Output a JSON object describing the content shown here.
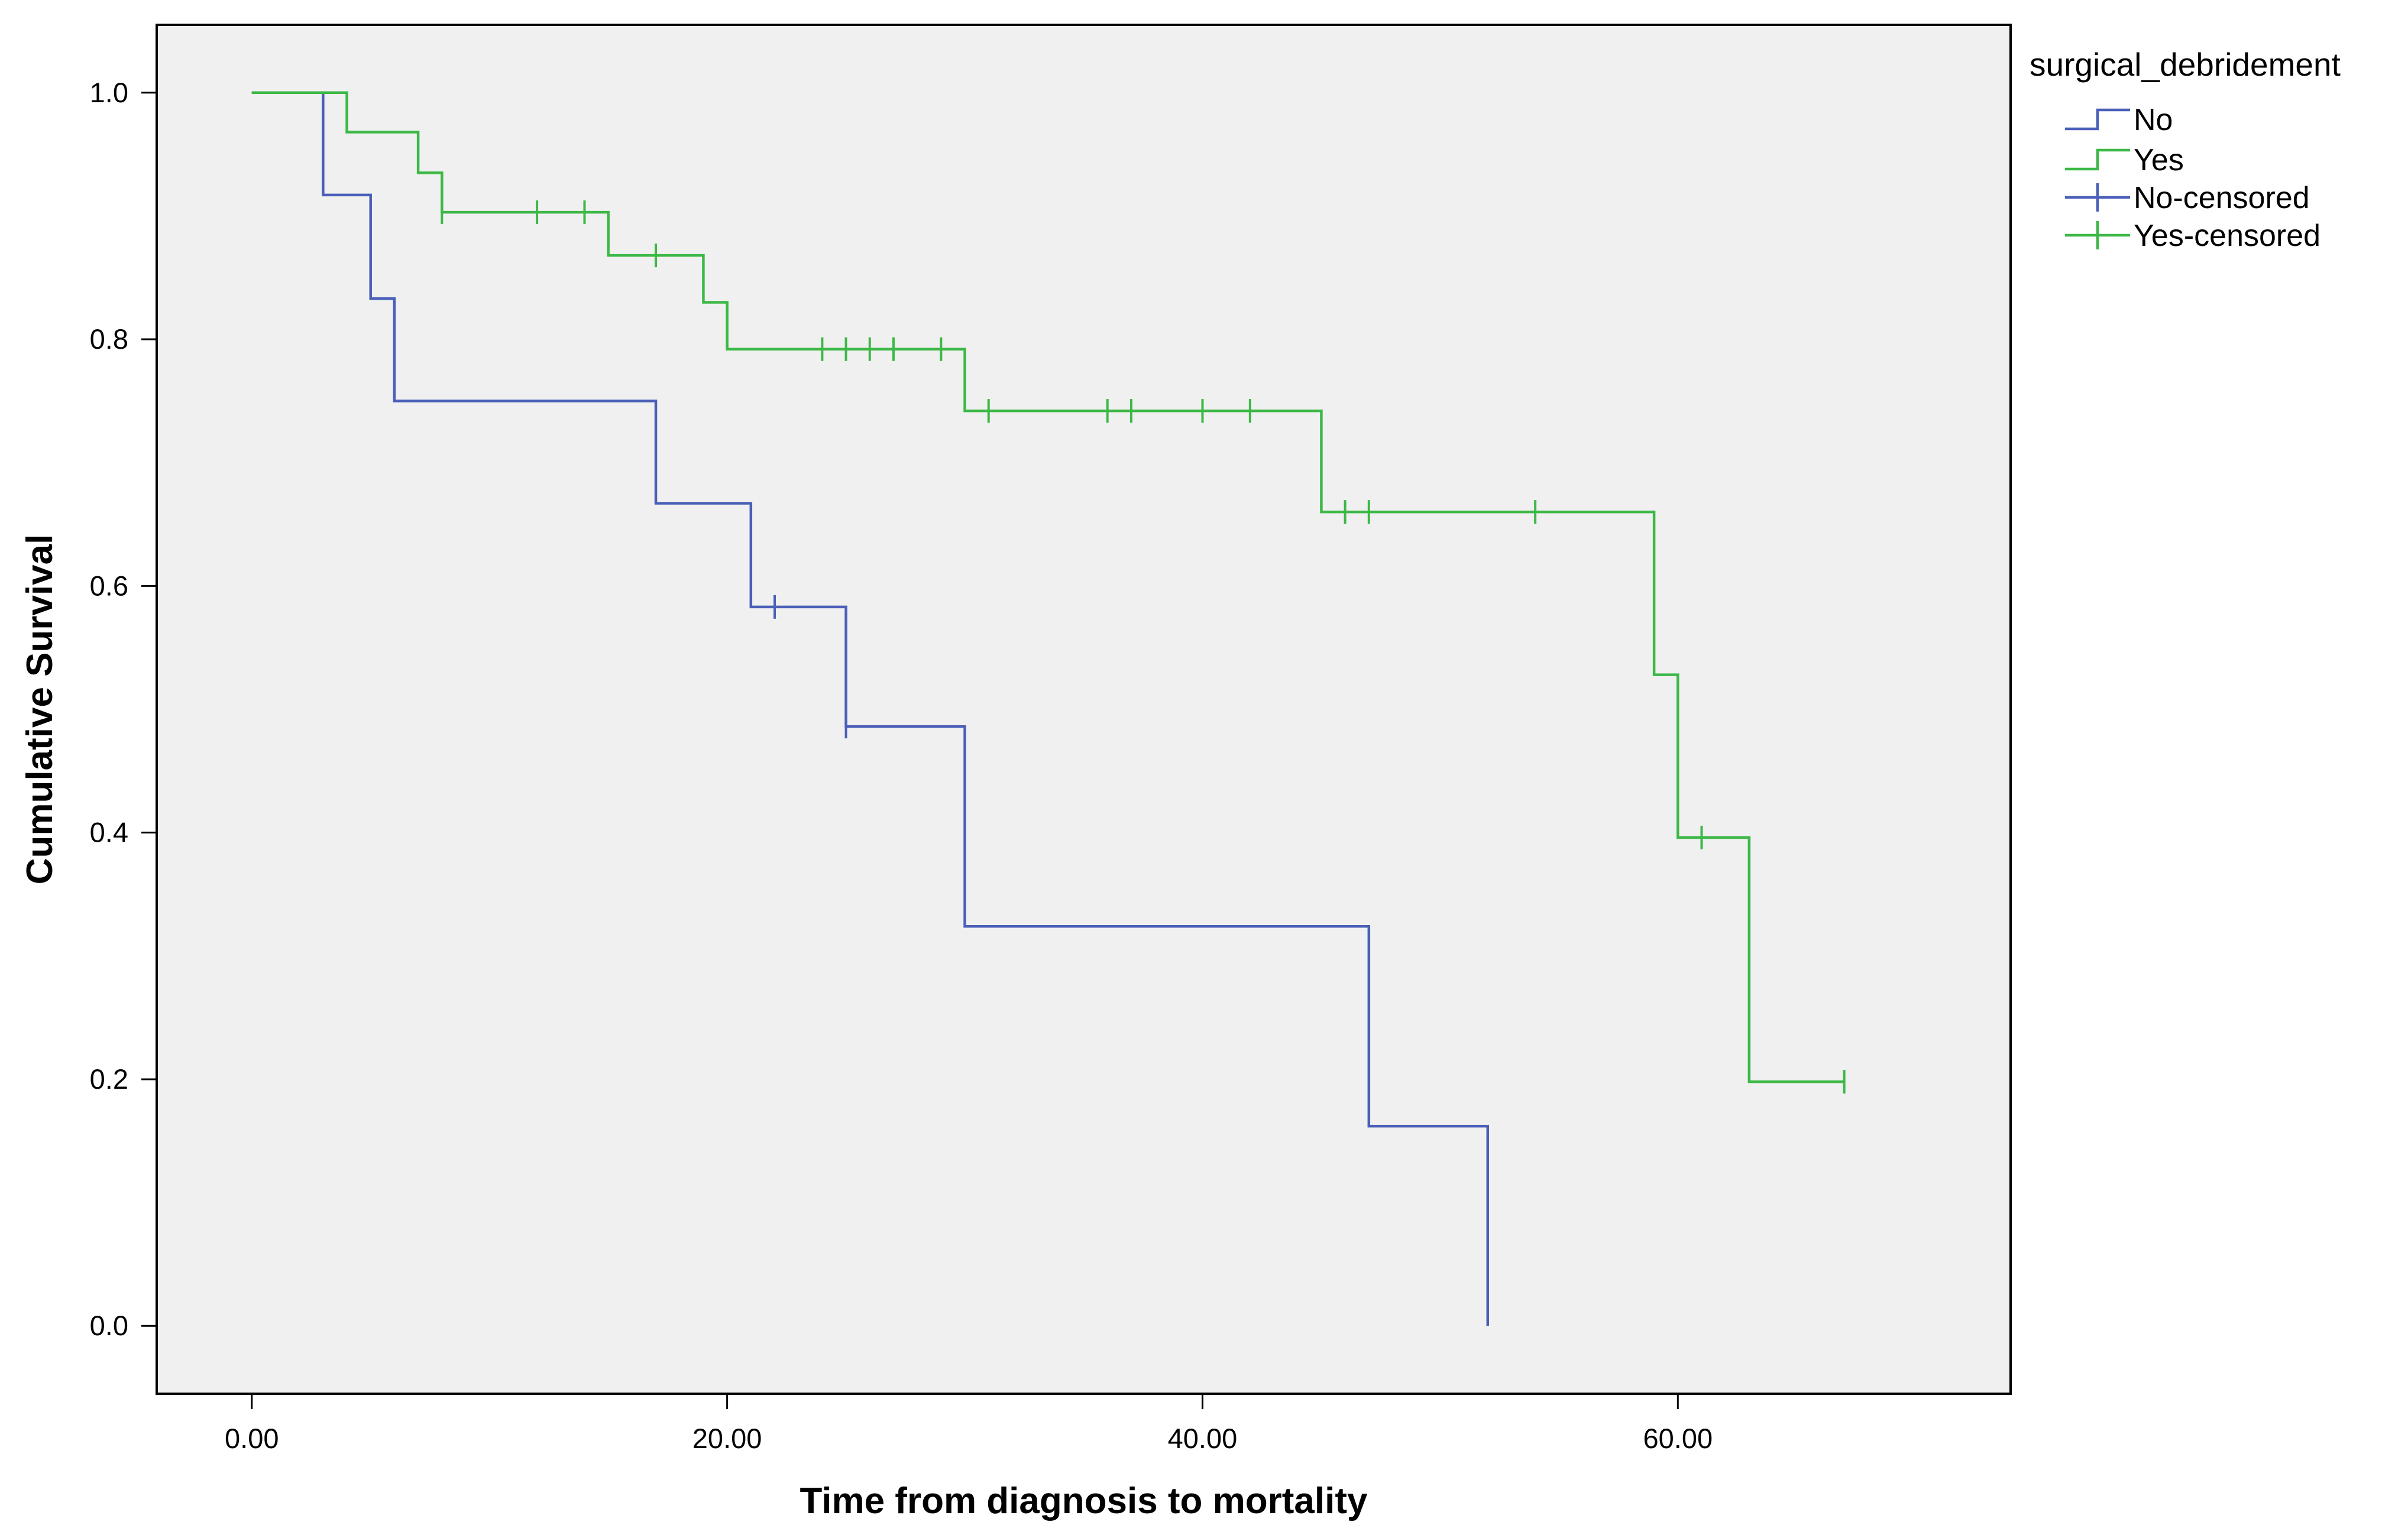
{
  "chart_data": {
    "type": "line",
    "subtype": "kaplan-meier-step",
    "title": "",
    "xlabel": "Time from diagnosis to mortality",
    "ylabel": "Cumulative Survival",
    "xlim": [
      -4,
      74
    ],
    "ylim": [
      -0.055,
      1.055
    ],
    "x_ticks": [
      0,
      20,
      40,
      60
    ],
    "x_tick_labels": [
      "0.00",
      "20.00",
      "40.00",
      "60.00"
    ],
    "y_ticks": [
      0.0,
      0.2,
      0.4,
      0.6,
      0.8,
      1.0
    ],
    "y_tick_labels": [
      "0.0",
      "0.2",
      "0.4",
      "0.6",
      "0.8",
      "1.0"
    ],
    "grid": false,
    "legend_position": "top-right outside",
    "legend_title": "surgical_debridement",
    "legend_entries": [
      "No",
      "Yes",
      "No-censored",
      "Yes-censored"
    ],
    "series": [
      {
        "name": "No",
        "censored_name": "No-censored",
        "color": "#4a5fb8",
        "steps": [
          [
            0,
            1.0
          ],
          [
            3,
            0.917
          ],
          [
            5,
            0.833
          ],
          [
            6,
            0.75
          ],
          [
            17,
            0.667
          ],
          [
            21,
            0.583
          ],
          [
            25,
            0.486
          ],
          [
            30,
            0.324
          ],
          [
            47,
            0.162
          ],
          [
            52,
            0.0
          ]
        ],
        "end_x": 52,
        "censored": [
          [
            22,
            0.583
          ],
          [
            25,
            0.486
          ]
        ]
      },
      {
        "name": "Yes",
        "censored_name": "Yes-censored",
        "color": "#3cb846",
        "steps": [
          [
            0,
            1.0
          ],
          [
            4,
            0.968
          ],
          [
            7,
            0.935
          ],
          [
            8,
            0.903
          ],
          [
            15,
            0.868
          ],
          [
            19,
            0.83
          ],
          [
            20,
            0.792
          ],
          [
            30,
            0.742
          ],
          [
            45,
            0.66
          ],
          [
            59,
            0.528
          ],
          [
            60,
            0.396
          ],
          [
            63,
            0.198
          ]
        ],
        "end_x": 67,
        "censored": [
          [
            8,
            0.903
          ],
          [
            12,
            0.903
          ],
          [
            14,
            0.903
          ],
          [
            17,
            0.868
          ],
          [
            24,
            0.792
          ],
          [
            25,
            0.792
          ],
          [
            26,
            0.792
          ],
          [
            27,
            0.792
          ],
          [
            29,
            0.792
          ],
          [
            31,
            0.742
          ],
          [
            36,
            0.742
          ],
          [
            37,
            0.742
          ],
          [
            40,
            0.742
          ],
          [
            42,
            0.742
          ],
          [
            46,
            0.66
          ],
          [
            47,
            0.66
          ],
          [
            54,
            0.66
          ],
          [
            61,
            0.396
          ],
          [
            67,
            0.198
          ]
        ]
      }
    ]
  },
  "colors": {
    "plot_background": "#f0f0f0",
    "frame": "#000000"
  }
}
